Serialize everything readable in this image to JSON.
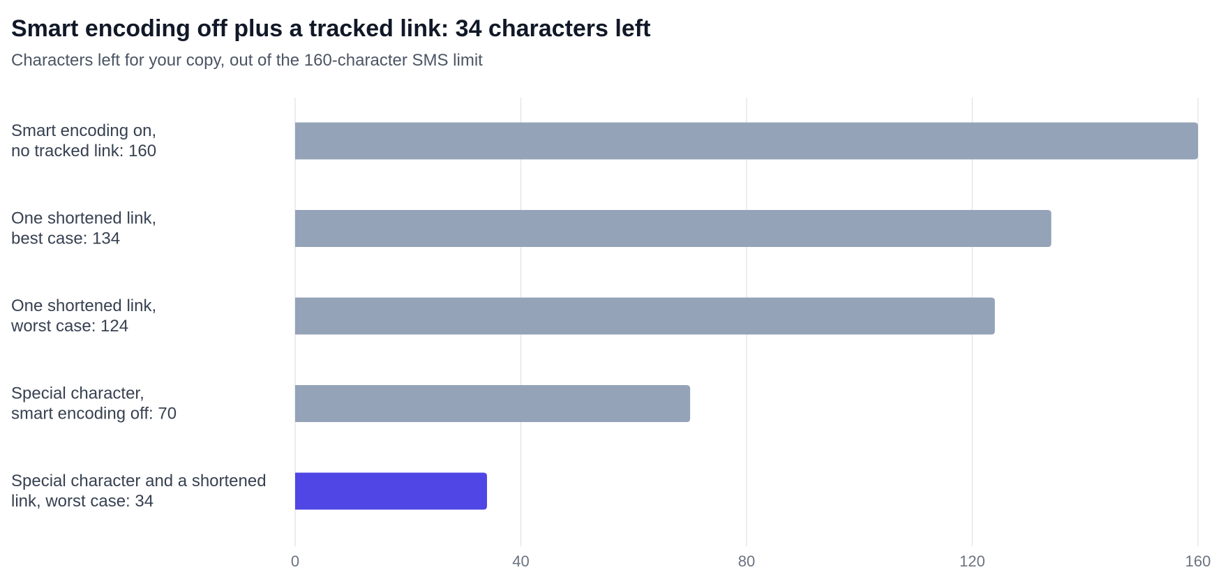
{
  "chart_data": {
    "type": "bar",
    "orientation": "horizontal",
    "title": "Smart encoding off plus a tracked link: 34 characters left",
    "subtitle": "Characters left for your copy, out of the 160-character SMS limit",
    "categories": [
      [
        "Smart encoding on,",
        "no tracked link: 160"
      ],
      [
        "One shortened link,",
        "best case: 134"
      ],
      [
        "One shortened link,",
        "worst case: 124"
      ],
      [
        "Special character,",
        "smart encoding off: 70"
      ],
      [
        "Special character and a shortened",
        "link, worst case: 34"
      ]
    ],
    "values": [
      160,
      134,
      124,
      70,
      34
    ],
    "highlight_index": 4,
    "xlim": [
      0,
      160
    ],
    "xticks": [
      0,
      40,
      80,
      120,
      160
    ],
    "grid": true,
    "colors": {
      "bar": "#94a3b8",
      "highlight": "#4f46e5",
      "grid": "#e5e7eb"
    }
  }
}
